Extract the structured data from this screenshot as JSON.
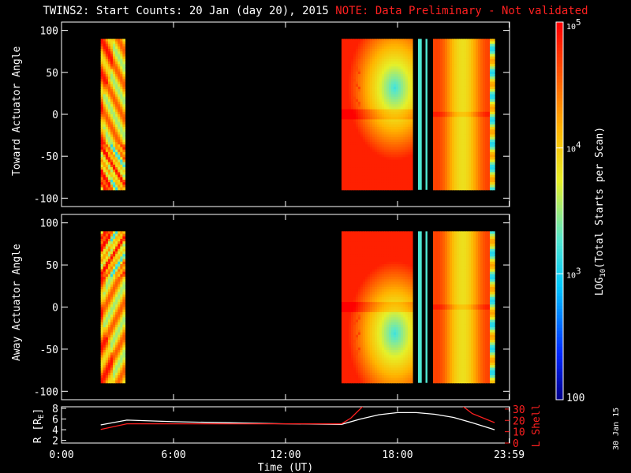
{
  "title": {
    "main": "TWINS2: Start Counts: 20 Jan (day  20), 2015",
    "note": "NOTE: Data Preliminary - Not validated"
  },
  "side_date": "30 Jan 15",
  "colors": {
    "background": "#000000",
    "axes": "#ffffff",
    "note": "#ff2020",
    "lshell": "#ff2020",
    "r": "#ffffff"
  },
  "chart_data": [
    {
      "type": "heatmap",
      "ylabel": "Toward Actuator Angle",
      "ylim": [
        -110,
        110
      ],
      "yticks": [
        "100",
        "50",
        "0",
        "-50",
        "-100"
      ],
      "ytick_values": [
        100,
        50,
        0,
        -50,
        -100
      ],
      "xlim": [
        0,
        24
      ],
      "data_angle_range": [
        -90,
        90
      ],
      "data_blocks_hours": [
        [
          2.1,
          3.4
        ],
        [
          15.0,
          18.8
        ],
        [
          19.1,
          19.3
        ],
        [
          19.5,
          19.6
        ],
        [
          19.9,
          23.2
        ]
      ],
      "colormap": "log rainbow (blue-cyan-yellow-red)"
    },
    {
      "type": "heatmap",
      "ylabel": "Away Actuator Angle",
      "ylim": [
        -110,
        110
      ],
      "yticks": [
        "100",
        "50",
        "0",
        "-50",
        "-100"
      ],
      "ytick_values": [
        100,
        50,
        0,
        -50,
        -100
      ],
      "xlim": [
        0,
        24
      ],
      "data_angle_range": [
        -90,
        90
      ],
      "data_blocks_hours": [
        [
          2.1,
          3.4
        ],
        [
          15.0,
          18.8
        ],
        [
          19.1,
          19.3
        ],
        [
          19.5,
          19.6
        ],
        [
          19.9,
          23.2
        ]
      ],
      "colormap": "log rainbow (blue-cyan-yellow-red)"
    },
    {
      "type": "line",
      "ylabel": "R [R",
      "ylabel_sub": "E",
      "ylabel_close": "]",
      "y2label": "L Shell",
      "xlabel": "Time (UT)",
      "xlim": [
        0,
        24
      ],
      "xticks": [
        "0:00",
        "6:00",
        "12:00",
        "18:00",
        "23:59"
      ],
      "xtick_values": [
        0,
        6,
        12,
        18,
        23.98
      ],
      "ylim": [
        1.5,
        8.3
      ],
      "yticks": [
        "8",
        "6",
        "4",
        "2"
      ],
      "ytick_values": [
        8,
        6,
        4,
        2
      ],
      "y2lim": [
        0,
        32
      ],
      "y2ticks": [
        "30",
        "20",
        "10",
        "0"
      ],
      "y2tick_values": [
        30,
        20,
        10,
        0
      ],
      "series": [
        {
          "axis": "left",
          "color": "#ffffff",
          "x": [
            2.1,
            3.5,
            6,
            9,
            12,
            15,
            16,
            17,
            18,
            19,
            20,
            21,
            22,
            23.2
          ],
          "y": [
            4.9,
            5.8,
            5.5,
            5.3,
            5.1,
            5.0,
            6.0,
            6.8,
            7.2,
            7.2,
            6.9,
            6.3,
            5.3,
            4.0
          ]
        },
        {
          "axis": "right",
          "color": "#ff2020",
          "x": [
            2.1,
            3.5,
            6,
            9,
            12,
            15,
            15.5,
            16.3
          ],
          "y": [
            12,
            17,
            17,
            17,
            17,
            17,
            22,
            35
          ]
        },
        {
          "axis": "right",
          "color": "#ff2020",
          "x": [
            21.3,
            22.0,
            23.2
          ],
          "y": [
            35,
            26,
            18
          ]
        }
      ]
    },
    {
      "type": "colorbar",
      "scale": "log",
      "range": [
        100,
        100000
      ],
      "labels": [
        "10^5",
        "10^4",
        "10^3",
        "100"
      ],
      "label_values": [
        100000,
        10000,
        1000,
        100
      ],
      "title_prefix": "LOG",
      "title_sub": "10",
      "title_suffix": "(Total Starts per Scan)"
    }
  ]
}
